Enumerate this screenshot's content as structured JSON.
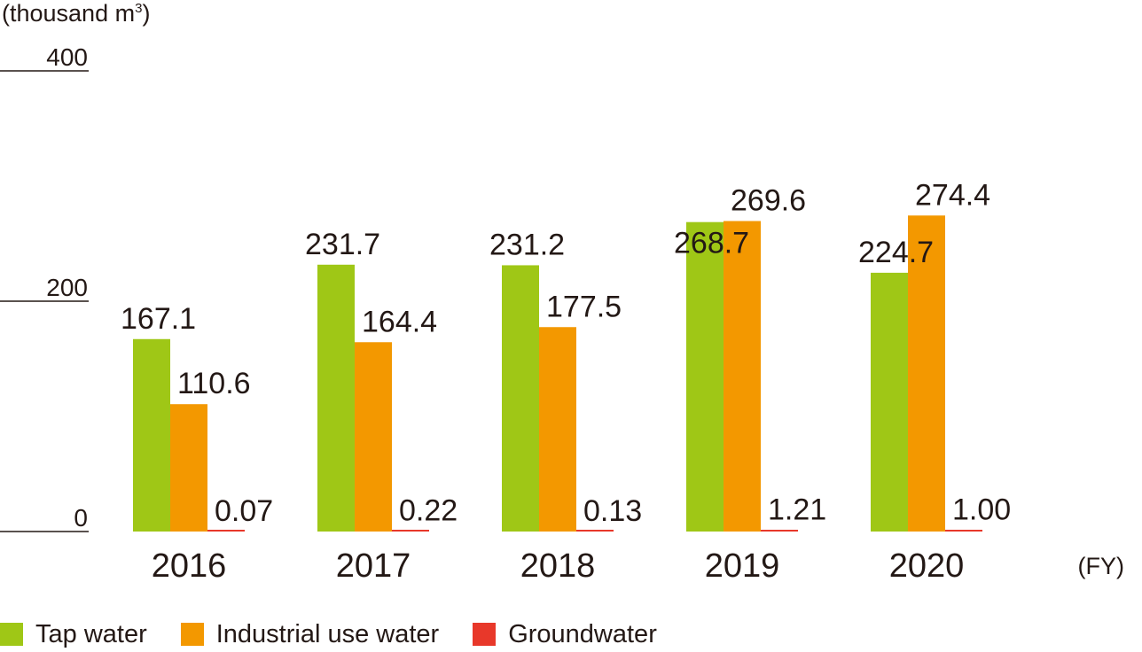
{
  "chart_data": {
    "type": "bar",
    "unit_label": "(thousand m",
    "unit_sup": "3",
    "unit_close": ")",
    "x_unit": "(FY)",
    "categories": [
      "2016",
      "2017",
      "2018",
      "2019",
      "2020"
    ],
    "ylim": [
      0,
      400
    ],
    "yticks": [
      0,
      200,
      400
    ],
    "series": [
      {
        "name": "Tap water",
        "color": "#9fc716",
        "values": [
          167.1,
          231.7,
          231.2,
          268.7,
          224.7
        ],
        "labels": [
          "167.1",
          "231.7",
          "231.2",
          "268.7",
          "224.7"
        ]
      },
      {
        "name": "Industrial use water",
        "color": "#f39800",
        "values": [
          110.6,
          164.4,
          177.5,
          269.6,
          274.4
        ],
        "labels": [
          "110.6",
          "164.4",
          "177.5",
          "269.6",
          "274.4"
        ]
      },
      {
        "name": "Groundwater",
        "color": "#e8382a",
        "values": [
          0.07,
          0.22,
          0.13,
          1.21,
          1.0
        ],
        "labels": [
          "0.07",
          "0.22",
          "0.13",
          "1.21",
          "1.00"
        ]
      }
    ]
  }
}
